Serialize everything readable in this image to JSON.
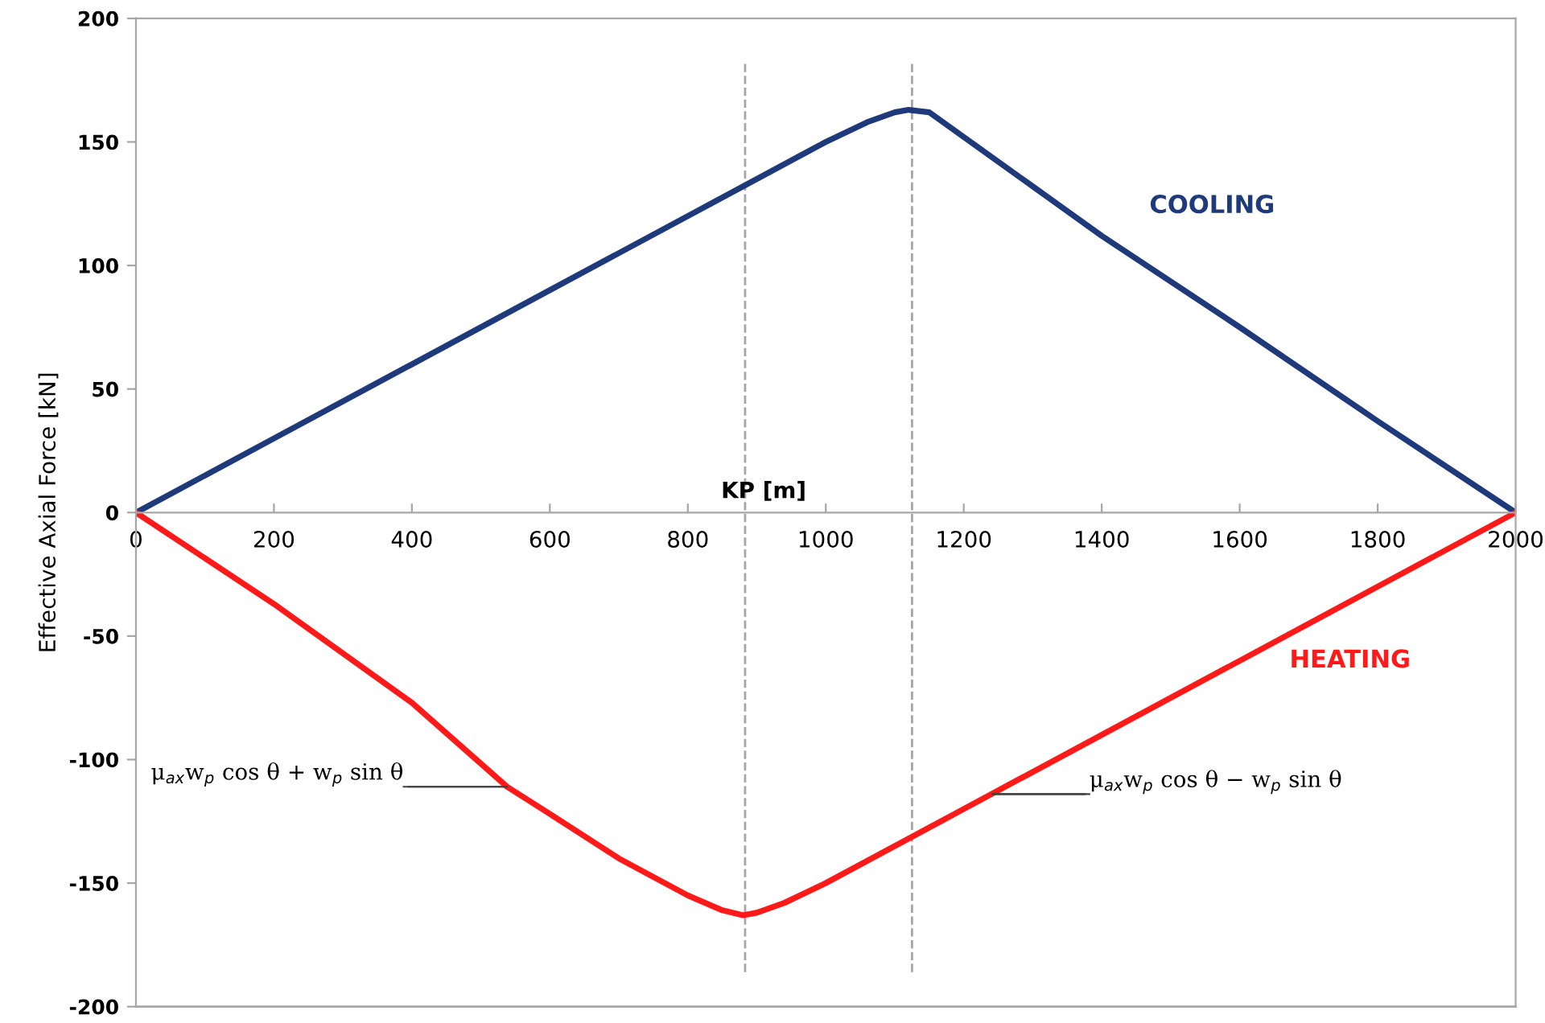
{
  "chart_data": {
    "type": "line",
    "xlabel": "KP [m]",
    "ylabel": "Effective Axial Force [kN]",
    "xlim": [
      0,
      2000
    ],
    "xticks": [
      0,
      200,
      400,
      600,
      800,
      1000,
      1200,
      1400,
      1600,
      1800,
      2000
    ],
    "ylim": [
      -200,
      200
    ],
    "yticks": [
      -200,
      -150,
      -100,
      -50,
      0,
      50,
      100,
      150,
      200
    ],
    "grid": false,
    "legend": false,
    "marker": "none",
    "line_style": "solid",
    "series": [
      {
        "name": "COOLING",
        "color": "#1f3a7a",
        "x": [
          0,
          200,
          400,
          600,
          800,
          1000,
          1060,
          1100,
          1120,
          1150,
          1200,
          1300,
          1400,
          1600,
          1800,
          2000
        ],
        "values": [
          0,
          30,
          60,
          90,
          120,
          150,
          158,
          162,
          163,
          162,
          152,
          132,
          112,
          75,
          37,
          0
        ]
      },
      {
        "name": "HEATING",
        "color": "#ff1a1a",
        "x": [
          0,
          200,
          400,
          538,
          600,
          700,
          800,
          850,
          880,
          900,
          940,
          1000,
          1200,
          1400,
          1600,
          1800,
          2000
        ],
        "values": [
          0,
          -37,
          -77,
          -111,
          -122,
          -140,
          -155,
          -161,
          -163,
          -162,
          -158,
          -150,
          -120,
          -90,
          -60,
          -30,
          0
        ]
      }
    ],
    "ref_lines": [
      {
        "axis": "x",
        "value": 883,
        "color": "#a6a6a6",
        "line_style": "dashed"
      },
      {
        "axis": "x",
        "value": 1125,
        "color": "#a6a6a6",
        "line_style": "dashed"
      }
    ],
    "annotations": [
      {
        "text": "μ$_{ax}$w$_{p}$ cos θ + w$_{p}$ sin θ",
        "x": 538,
        "y": -111
      },
      {
        "text": "μ$_{ax}$w$_{p}$ cos θ − w$_{p}$ sin θ",
        "x": 1242,
        "y": -114
      }
    ]
  }
}
